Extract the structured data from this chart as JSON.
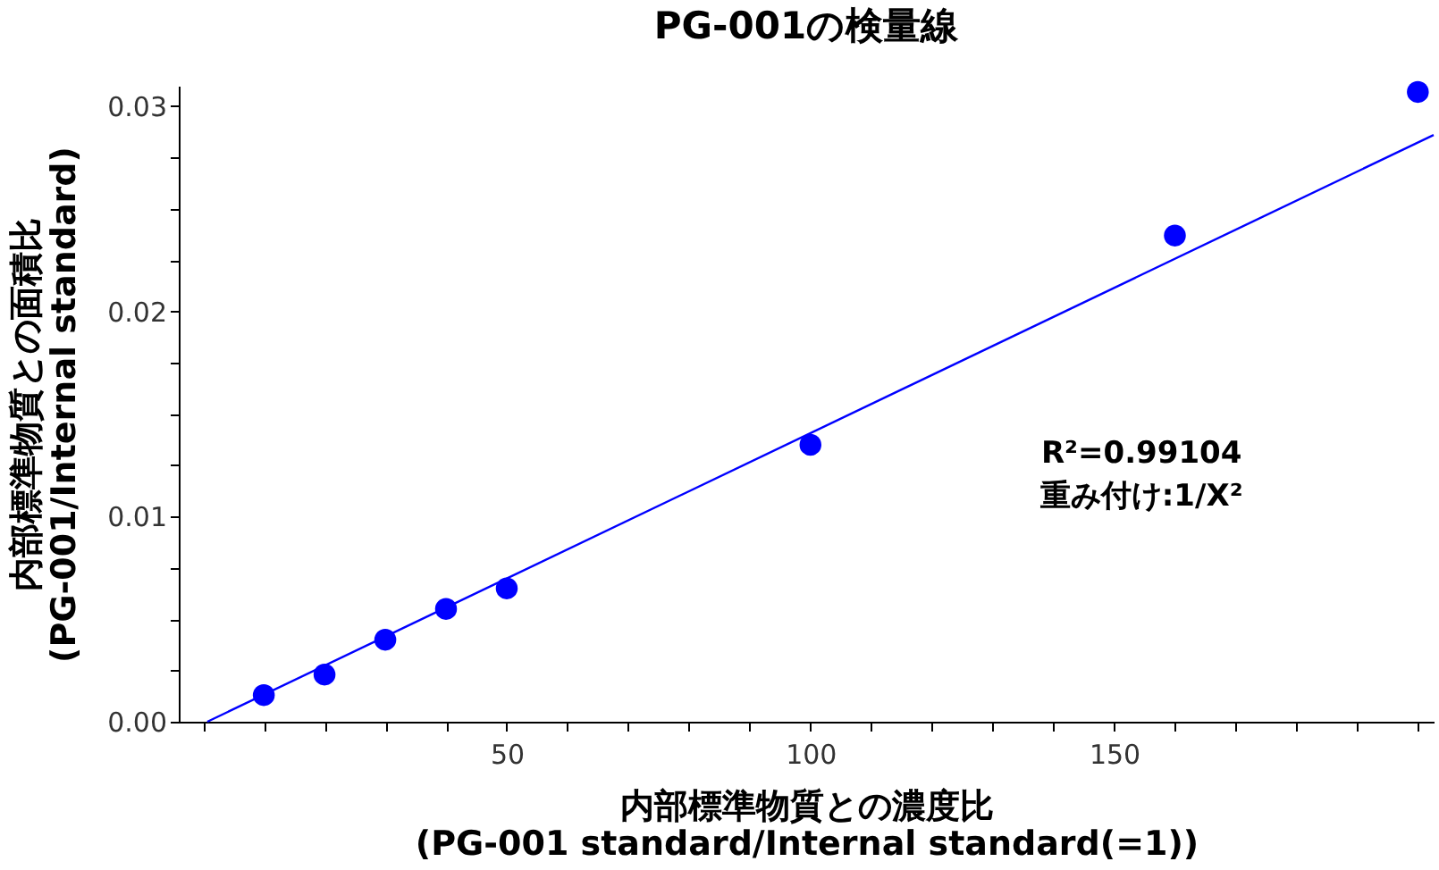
{
  "chart_data": {
    "type": "scatter",
    "title": "PG-001の検量線",
    "xlabel": "内部標準物質との濃度比\n(PG-001 standard/Internal standard(=1))",
    "ylabel": "内部標準物質との面積比\n(PG-001/Internal standard)",
    "xlim": [
      -4,
      202.6
    ],
    "ylim": [
      0,
      0.031
    ],
    "xticks": [
      {
        "value": 0,
        "label": null
      },
      {
        "value": 10,
        "label": null
      },
      {
        "value": 20,
        "label": null
      },
      {
        "value": 30,
        "label": null
      },
      {
        "value": 40,
        "label": null
      },
      50,
      {
        "value": 60,
        "label": null
      },
      {
        "value": 70,
        "label": null
      },
      {
        "value": 80,
        "label": null
      },
      {
        "value": 90,
        "label": null
      },
      100,
      {
        "value": 110,
        "label": null
      },
      {
        "value": 120,
        "label": null
      },
      {
        "value": 130,
        "label": null
      },
      {
        "value": 140,
        "label": null
      },
      150,
      {
        "value": 160,
        "label": null
      },
      {
        "value": 170,
        "label": null
      },
      {
        "value": 180,
        "label": null
      },
      {
        "value": 190,
        "label": null
      },
      {
        "value": 200,
        "label": null
      }
    ],
    "yticks": [
      {
        "value": 0,
        "label": "0.00"
      },
      {
        "value": 0.0025,
        "label": null
      },
      {
        "value": 0.005,
        "label": null
      },
      {
        "value": 0.0075,
        "label": null
      },
      {
        "value": 0.01,
        "label": "0.01"
      },
      {
        "value": 0.0125,
        "label": null
      },
      {
        "value": 0.015,
        "label": null
      },
      {
        "value": 0.0175,
        "label": null
      },
      {
        "value": 0.02,
        "label": "0.02"
      },
      {
        "value": 0.0225,
        "label": null
      },
      {
        "value": 0.025,
        "label": null
      },
      {
        "value": 0.0275,
        "label": null
      },
      {
        "value": 0.03,
        "label": "0.03"
      }
    ],
    "grid": false,
    "marker": "circle",
    "series": [
      {
        "color": "#0000ff",
        "x": [
          10,
          20,
          30,
          40,
          50,
          100,
          160,
          200
        ],
        "values": [
          0.0013,
          0.0023,
          0.004,
          0.0055,
          0.0065,
          0.0135,
          0.0237,
          0.0307
        ]
      },
      {
        "type": "line",
        "color": "#0000ff",
        "line_style": "solid",
        "marker": "none",
        "x": [
          0.7,
          202.6
        ],
        "values": [
          0,
          0.0286
        ]
      }
    ],
    "annotations": [
      "R²=0.99104",
      "重み付け:1/X²"
    ]
  }
}
